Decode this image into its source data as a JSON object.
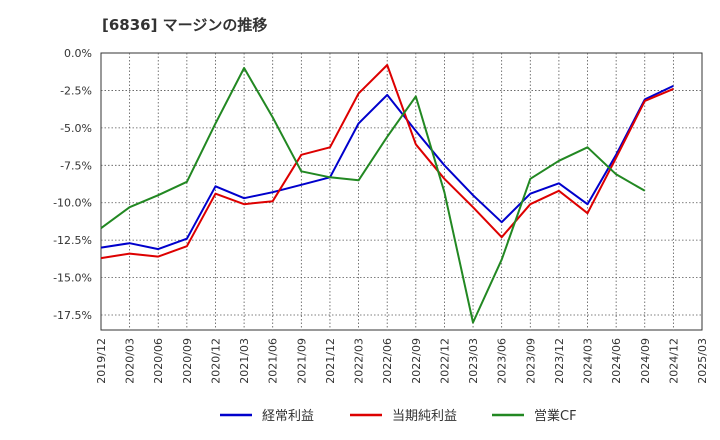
{
  "chart_data": {
    "type": "line",
    "title": "[6836]  マージンの推移",
    "xlabel": "",
    "ylabel": "",
    "x": [
      "2019/12",
      "2020/03",
      "2020/06",
      "2020/09",
      "2020/12",
      "2021/03",
      "2021/06",
      "2021/09",
      "2021/12",
      "2022/03",
      "2022/06",
      "2022/09",
      "2022/12",
      "2023/03",
      "2023/06",
      "2023/09",
      "2023/12",
      "2024/03",
      "2024/06",
      "2024/09",
      "2024/12",
      "2025/03"
    ],
    "y_ticks": [
      0,
      -2.5,
      -5,
      -7.5,
      -10,
      -12.5,
      -15,
      -17.5
    ],
    "y_tick_labels": [
      "0.0%",
      "-2.5%",
      "-5.0%",
      "-7.5%",
      "-10.0%",
      "-12.5%",
      "-15.0%",
      "-17.5%"
    ],
    "ylim": [
      -18.5,
      0
    ],
    "grid": true,
    "legend_position": "bottom",
    "series": [
      {
        "name": "経常利益",
        "color": "#0000cc",
        "values": [
          -13.0,
          -12.7,
          -13.1,
          -12.4,
          -8.9,
          -9.7,
          -9.3,
          -8.8,
          -8.3,
          -4.7,
          -2.8,
          -5.2,
          -7.5,
          -9.5,
          -11.3,
          -9.4,
          -8.7,
          -10.1,
          -6.8,
          -3.1,
          -2.2,
          null
        ]
      },
      {
        "name": "当期純利益",
        "color": "#dd0000",
        "values": [
          -13.7,
          -13.4,
          -13.6,
          -12.9,
          -9.4,
          -10.1,
          -9.9,
          -6.8,
          -6.3,
          -2.7,
          -0.8,
          -6.1,
          -8.4,
          -10.3,
          -12.3,
          -10.1,
          -9.2,
          -10.7,
          -7.0,
          -3.2,
          -2.4,
          null
        ]
      },
      {
        "name": "営業CF",
        "color": "#228822",
        "values": [
          -11.7,
          -10.3,
          -9.5,
          -8.6,
          -4.7,
          -1.0,
          -4.3,
          -7.9,
          -8.3,
          -8.5,
          -5.6,
          -2.9,
          -9.3,
          -18.0,
          -13.8,
          -8.4,
          -7.2,
          -6.3,
          -8.1,
          -9.2,
          null,
          null
        ]
      }
    ]
  }
}
